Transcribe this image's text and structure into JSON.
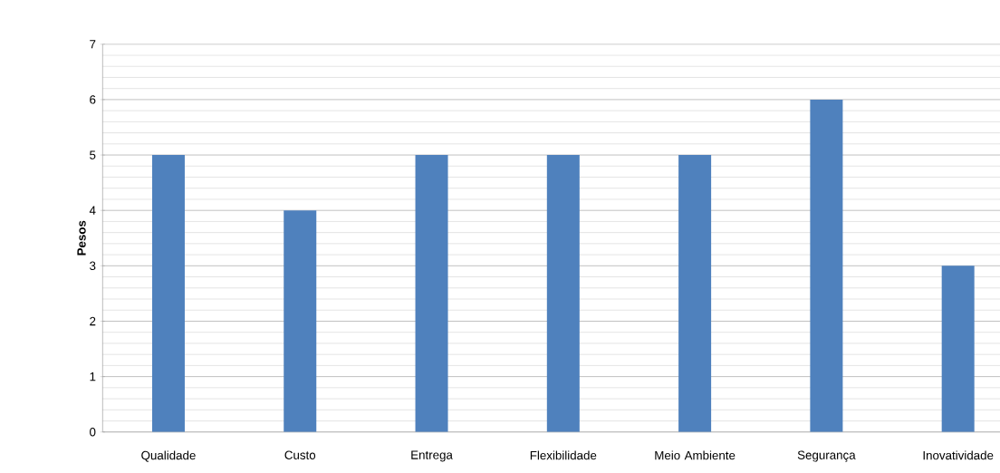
{
  "chart_data": {
    "type": "bar",
    "ylabel": "**Pesos**",
    "categories": [
      "Qualidade",
      "Custo",
      "Entrega",
      "Flexibilidade",
      "Meio Ambiente",
      "Segurança",
      "Inovatividade"
    ],
    "values": [
      5,
      4,
      5,
      5,
      5,
      6,
      3
    ],
    "color": "#4f81bd",
    "ylim": [
      0,
      7
    ],
    "yticks": [
      0,
      1,
      2,
      3,
      4,
      5,
      6,
      7
    ],
    "grid": "y"
  }
}
